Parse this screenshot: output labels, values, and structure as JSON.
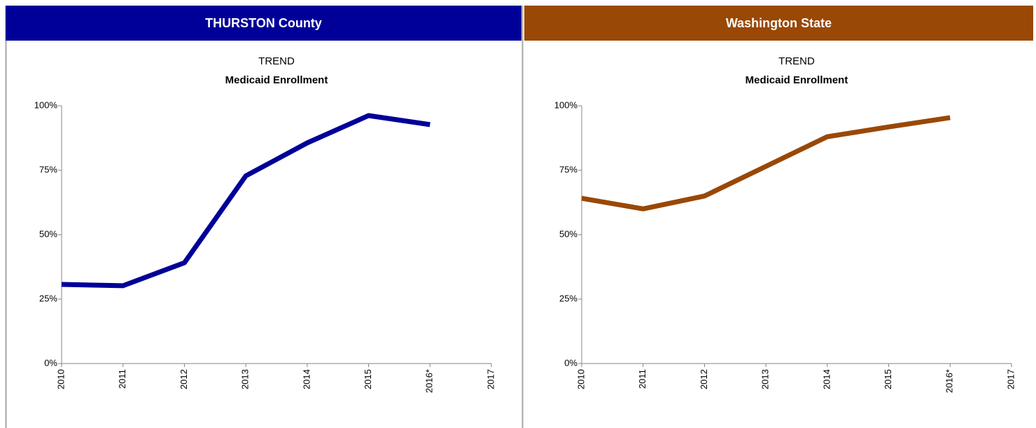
{
  "chart_data": [
    {
      "type": "line",
      "header": "THURSTON County",
      "header_color": "#000099",
      "title": "TREND",
      "subtitle": "Medicaid Enrollment",
      "categories": [
        "2010",
        "2011",
        "2012",
        "2013",
        "2014",
        "2015",
        "2016*",
        "2017"
      ],
      "series": [
        {
          "color": "#000099",
          "values": [
            30.7,
            30.2,
            39.1,
            72.8,
            85.6,
            96.2,
            92.7,
            null
          ]
        }
      ],
      "ylim": [
        0,
        100
      ],
      "yticks": [
        {
          "value": 0,
          "label": "0%"
        },
        {
          "value": 25,
          "label": "25%"
        },
        {
          "value": 50,
          "label": "50%"
        },
        {
          "value": 75,
          "label": "75%"
        },
        {
          "value": 100,
          "label": "100%"
        }
      ]
    },
    {
      "type": "line",
      "header": "Washington State",
      "header_color": "#994806",
      "title": "TREND",
      "subtitle": "Medicaid Enrollment",
      "categories": [
        "2010",
        "2011",
        "2012",
        "2013",
        "2014",
        "2015",
        "2016*",
        "2017"
      ],
      "series": [
        {
          "color": "#994806",
          "values": [
            64.1,
            60.0,
            65.0,
            76.5,
            88.0,
            91.8,
            95.4,
            null
          ]
        }
      ],
      "ylim": [
        0,
        100
      ],
      "yticks": [
        {
          "value": 0,
          "label": "0%"
        },
        {
          "value": 25,
          "label": "25%"
        },
        {
          "value": 50,
          "label": "50%"
        },
        {
          "value": 75,
          "label": "75%"
        },
        {
          "value": 100,
          "label": "100%"
        }
      ]
    }
  ]
}
